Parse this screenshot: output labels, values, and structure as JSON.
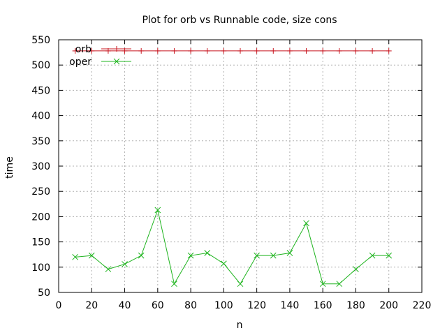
{
  "chart_data": {
    "type": "line",
    "title": "Plot for orb vs Runnable code, size cons",
    "xlabel": "n",
    "ylabel": "time",
    "xlim": [
      0,
      220
    ],
    "ylim": [
      50,
      550
    ],
    "xticks": [
      0,
      20,
      40,
      60,
      80,
      100,
      120,
      140,
      160,
      180,
      200,
      220
    ],
    "yticks": [
      50,
      100,
      150,
      200,
      250,
      300,
      350,
      400,
      450,
      500,
      550
    ],
    "grid": true,
    "legend_position": "top-left",
    "series": [
      {
        "name": "orb",
        "color": "#c8141e",
        "marker": "plus",
        "x": [
          10,
          20,
          30,
          40,
          50,
          60,
          70,
          80,
          90,
          100,
          110,
          120,
          130,
          140,
          150,
          160,
          170,
          180,
          190,
          200
        ],
        "y": [
          528,
          528,
          528,
          528,
          528,
          528,
          528,
          528,
          528,
          528,
          528,
          528,
          528,
          528,
          528,
          528,
          528,
          528,
          528,
          528
        ]
      },
      {
        "name": "oper",
        "color": "#1eb41e",
        "marker": "cross",
        "x": [
          10,
          20,
          30,
          40,
          50,
          60,
          70,
          80,
          90,
          100,
          110,
          120,
          130,
          140,
          150,
          160,
          170,
          180,
          190,
          200
        ],
        "y": [
          120,
          123,
          96,
          106,
          123,
          213,
          67,
          123,
          128,
          107,
          67,
          123,
          123,
          128,
          187,
          67,
          67,
          96,
          123,
          123
        ]
      }
    ]
  }
}
